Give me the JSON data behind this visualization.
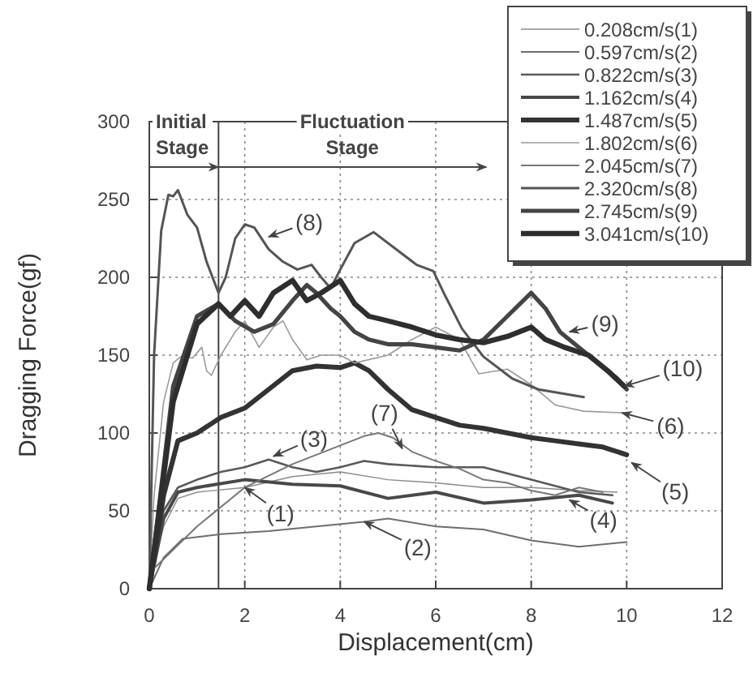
{
  "chart_data": {
    "type": "line",
    "xlabel": "Displacement(cm)",
    "ylabel": "Dragging Force(gf)",
    "xlim": [
      0,
      12
    ],
    "xticks": [
      0,
      2,
      4,
      6,
      8,
      10,
      12
    ],
    "ylim": [
      0,
      300
    ],
    "yticks": [
      0,
      50,
      100,
      150,
      200,
      250,
      300
    ],
    "grid": true,
    "legend": "top right",
    "ref_lines": [
      {
        "axis": "x",
        "value": 1.45
      }
    ],
    "annotations": [
      "Initial Stage",
      "Fluctuation Stage",
      {
        "text": "(8)",
        "x": 2.5,
        "y": 226
      },
      {
        "text": "(9)",
        "x": 8.8,
        "y": 165
      },
      {
        "text": "(10)",
        "x": 9.95,
        "y": 130
      },
      {
        "text": "(6)",
        "x": 9.9,
        "y": 113
      },
      {
        "text": "(5)",
        "x": 10.1,
        "y": 81
      },
      {
        "text": "(4)",
        "x": 8.8,
        "y": 57
      },
      {
        "text": "(2)",
        "x": 4.5,
        "y": 43
      },
      {
        "text": "(1)",
        "x": 2,
        "y": 65
      },
      {
        "text": "(3)",
        "x": 2.6,
        "y": 85
      },
      {
        "text": "(7)",
        "x": 5.3,
        "y": 90
      }
    ],
    "series": [
      {
        "name": "0.208cm/s(1)",
        "color": "#8a8a8a",
        "x": [
          0,
          0.3,
          0.6,
          1,
          2,
          3,
          4,
          5,
          6,
          7,
          8,
          9,
          9.8
        ],
        "values": [
          5,
          40,
          58,
          62,
          65,
          72,
          75,
          70,
          68,
          65,
          65,
          63,
          62
        ]
      },
      {
        "name": "0.597cm/s(2)",
        "color": "#6e6e6e",
        "x": [
          0,
          0.3,
          0.7,
          1.5,
          2.5,
          3.5,
          4.5,
          5,
          6,
          7,
          8,
          9,
          10
        ],
        "values": [
          0,
          20,
          32,
          35,
          37,
          40,
          43,
          45,
          40,
          38,
          31,
          27,
          30
        ]
      },
      {
        "name": "0.822cm/s(3)",
        "color": "#5a5a5a",
        "x": [
          0,
          0.3,
          0.6,
          1,
          1.5,
          2,
          2.5,
          3,
          3.5,
          4,
          4.5,
          5,
          6,
          7,
          8,
          9,
          9.7
        ],
        "values": [
          0,
          50,
          65,
          70,
          75,
          78,
          83,
          78,
          75,
          78,
          82,
          80,
          78,
          78,
          70,
          62,
          60
        ]
      },
      {
        "name": "1.162cm/s(4)",
        "color": "#484848",
        "x": [
          0,
          0.3,
          0.6,
          1,
          2,
          3,
          4,
          5,
          6,
          7,
          8,
          9,
          9.7
        ],
        "values": [
          0,
          45,
          62,
          65,
          70,
          67,
          66,
          58,
          62,
          55,
          57,
          60,
          55
        ]
      },
      {
        "name": "1.487cm/s(5)",
        "color": "#333333",
        "x": [
          0,
          0.3,
          0.6,
          1,
          1.5,
          2,
          2.5,
          3,
          3.5,
          4,
          4.3,
          4.6,
          5,
          5.5,
          6,
          6.5,
          7,
          7.5,
          8,
          8.5,
          9,
          9.5,
          10
        ],
        "values": [
          0,
          60,
          95,
          100,
          110,
          116,
          128,
          140,
          143,
          142,
          145,
          140,
          128,
          115,
          110,
          105,
          103,
          100,
          97,
          95,
          93,
          91,
          86
        ]
      },
      {
        "name": "1.802cm/s(6)",
        "color": "#9a9a9a",
        "x": [
          0,
          0.1,
          0.3,
          0.5,
          0.7,
          0.9,
          1.1,
          1.2,
          1.3,
          1.5,
          1.8,
          2,
          2.3,
          2.6,
          2.8,
          3,
          3.3,
          3.6,
          4,
          4.3,
          5,
          5.5,
          6,
          6.5,
          6.9,
          7.5,
          8,
          8.5,
          9.1,
          9.9
        ],
        "values": [
          0,
          60,
          120,
          145,
          150,
          148,
          155,
          140,
          137,
          150,
          165,
          172,
          155,
          168,
          172,
          160,
          147,
          150,
          150,
          145,
          150,
          160,
          168,
          160,
          138,
          141,
          131,
          118,
          114,
          113
        ]
      },
      {
        "name": "2.045cm/s(7)",
        "color": "#777777",
        "x": [
          0,
          1,
          2,
          3,
          4,
          4.5,
          4.8,
          5.1,
          5.5,
          6,
          6.5,
          7,
          7.5,
          8,
          8.5,
          9,
          9.5
        ],
        "values": [
          10,
          40,
          65,
          80,
          92,
          98,
          100,
          97,
          88,
          82,
          77,
          70,
          68,
          63,
          60,
          65,
          62
        ]
      },
      {
        "name": "2.320cm/s(8)",
        "color": "#555555",
        "x": [
          0,
          0.1,
          0.25,
          0.4,
          0.5,
          0.6,
          0.8,
          1,
          1.2,
          1.45,
          1.6,
          1.8,
          2,
          2.2,
          2.5,
          2.8,
          3.1,
          3.4,
          3.6,
          3.8,
          4,
          4.3,
          4.7,
          5.6,
          5.95,
          6.2,
          6.55,
          7,
          7.6,
          8.15,
          9.1
        ],
        "values": [
          0,
          150,
          230,
          253,
          252,
          256,
          240,
          232,
          210,
          190,
          200,
          225,
          234,
          232,
          218,
          210,
          205,
          208,
          200,
          193,
          205,
          222,
          229,
          208,
          204,
          188,
          167,
          149,
          135,
          128,
          123
        ]
      },
      {
        "name": "2.745cm/s(9)",
        "color": "#444444",
        "x": [
          0,
          0.5,
          1,
          1.45,
          1.8,
          2.2,
          2.6,
          3,
          3.3,
          3.5,
          3.8,
          4,
          4.3,
          4.6,
          5,
          5.5,
          6,
          6.5,
          7,
          7.5,
          8,
          8.3,
          8.6,
          9,
          9.4,
          9.8,
          10
        ],
        "values": [
          0,
          130,
          175,
          183,
          172,
          165,
          170,
          185,
          195,
          190,
          180,
          175,
          165,
          160,
          157,
          157,
          155,
          153,
          160,
          175,
          190,
          180,
          165,
          155,
          145,
          135,
          128
        ]
      },
      {
        "name": "3.041cm/s(10)",
        "color": "#2e2e2e",
        "x": [
          0,
          0.5,
          1,
          1.45,
          1.7,
          2,
          2.3,
          2.6,
          3,
          3.3,
          3.6,
          4,
          4.3,
          4.6,
          5,
          5.5,
          6,
          6.5,
          7,
          7.5,
          8,
          8.3,
          8.7,
          9.2,
          9.6,
          9.95
        ],
        "values": [
          0,
          120,
          170,
          183,
          175,
          185,
          175,
          190,
          198,
          185,
          190,
          198,
          183,
          175,
          172,
          168,
          163,
          160,
          158,
          162,
          168,
          160,
          155,
          150,
          140,
          130
        ]
      }
    ]
  }
}
